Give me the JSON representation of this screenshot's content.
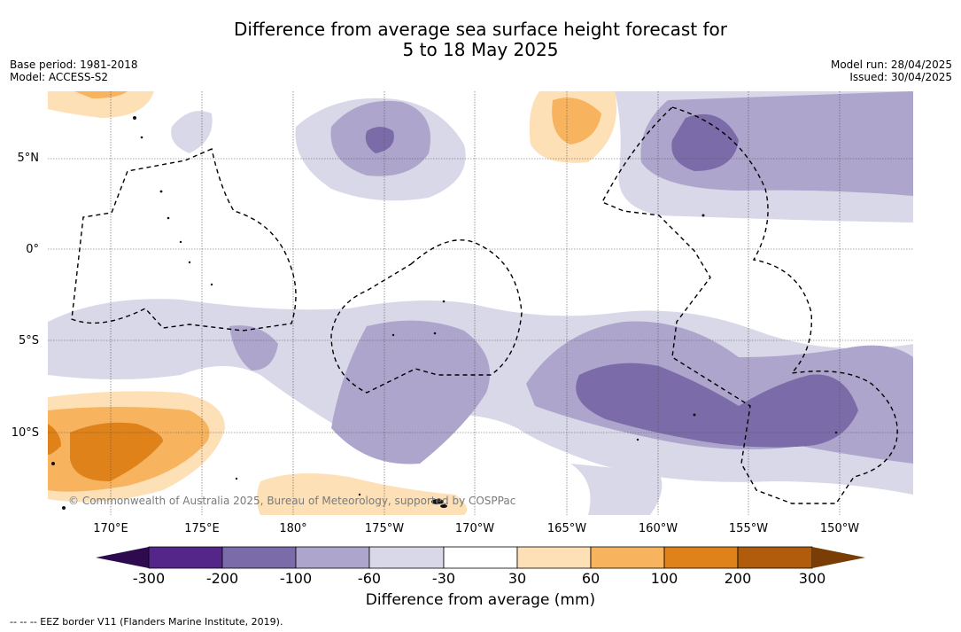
{
  "title": {
    "line1": "Difference from average sea surface height forecast for",
    "line2": "5 to 18 May 2025"
  },
  "meta": {
    "base_period": "Base period: 1981-2018",
    "model": "Model: ACCESS-S2",
    "model_run": "Model run: 28/04/2025",
    "issued": "Issued: 30/04/2025"
  },
  "map": {
    "lat_labels": [
      "5°N",
      "0°",
      "5°S",
      "10°S"
    ],
    "lon_labels": [
      "170°E",
      "175°E",
      "180°",
      "175°W",
      "170°W",
      "165°W",
      "160°W",
      "155°W",
      "150°W"
    ],
    "copyright": "© Commonwealth of Australia 2025, Bureau of Meteorology, supported by COSPPac"
  },
  "colorbar": {
    "tick_labels": [
      "-300",
      "-200",
      "-100",
      "-60",
      "-30",
      "30",
      "60",
      "100",
      "200",
      "300"
    ],
    "colors": [
      "#2e0a4f",
      "#55268a",
      "#7b6ba8",
      "#ada5cc",
      "#d8d8e8",
      "#ffffff",
      "#fde0b6",
      "#f8b35e",
      "#e0821a",
      "#b15c0c",
      "#7a3d06"
    ],
    "title": "Difference from average (mm)"
  },
  "legend": {
    "eez_label": "--  --  -- EEZ border V11 (Flanders Marine Institute, 2019)."
  }
}
